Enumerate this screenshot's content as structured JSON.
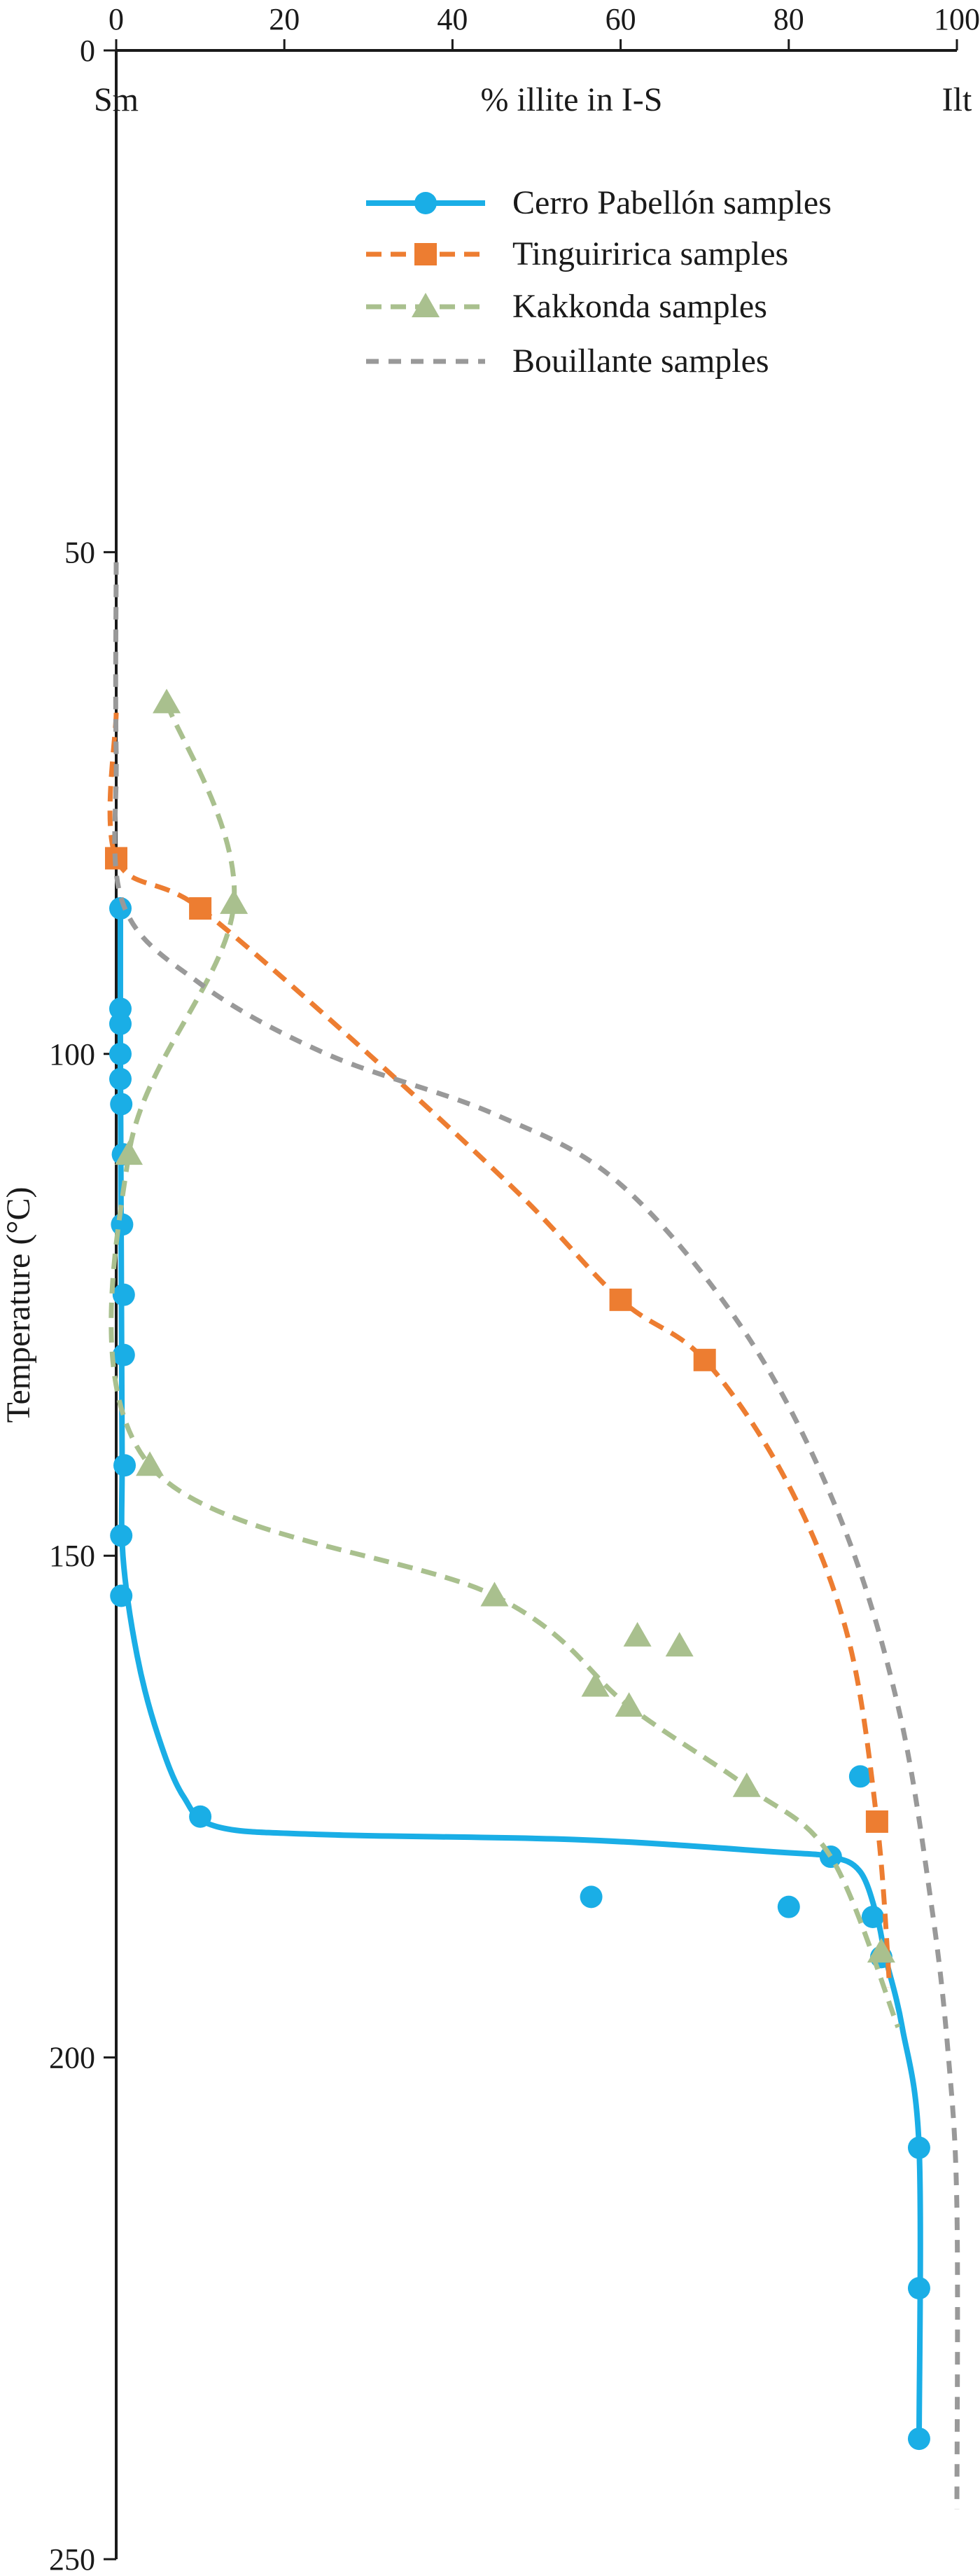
{
  "chart_data": {
    "type": "line",
    "title": "",
    "xlabel": "% illite in I-S",
    "ylabel": "Temperature (°C)",
    "x_end_labels": {
      "left": "Sm",
      "right": "Ilt"
    },
    "xlim": [
      0,
      100
    ],
    "ylim": [
      0,
      250
    ],
    "y_inverted": true,
    "x_ticks": [
      0,
      20,
      40,
      60,
      80,
      100
    ],
    "y_ticks": [
      0,
      50,
      100,
      150,
      200,
      250
    ],
    "grid": false,
    "legend_position": "top-right",
    "series": [
      {
        "name": "Cerro Pabellón samples",
        "color": "#1aaee6",
        "marker": "circle",
        "line_style": "solid",
        "points": [
          [
            0.5,
            85.5
          ],
          [
            0.5,
            95.5
          ],
          [
            0.5,
            97
          ],
          [
            0.5,
            100
          ],
          [
            0.5,
            102.5
          ],
          [
            0.6,
            105
          ],
          [
            0.8,
            110
          ],
          [
            0.7,
            117
          ],
          [
            0.9,
            124
          ],
          [
            0.9,
            130
          ],
          [
            1.0,
            141
          ],
          [
            0.6,
            148
          ],
          [
            0.6,
            154
          ],
          [
            10,
            176
          ],
          [
            88.5,
            172
          ],
          [
            85,
            180
          ],
          [
            56.5,
            184
          ],
          [
            80,
            185
          ],
          [
            90,
            186
          ],
          [
            91,
            190
          ],
          [
            95.5,
            209
          ],
          [
            95.5,
            223
          ],
          [
            95.5,
            238
          ]
        ],
        "curve": [
          [
            0.5,
            85.5
          ],
          [
            0.5,
            100
          ],
          [
            0.6,
            120
          ],
          [
            0.7,
            140
          ],
          [
            0.8,
            150
          ],
          [
            2.5,
            160
          ],
          [
            5,
            168
          ],
          [
            8,
            174
          ],
          [
            12,
            177
          ],
          [
            25,
            177.8
          ],
          [
            55,
            178.3
          ],
          [
            78,
            179.5
          ],
          [
            85,
            180
          ],
          [
            88.5,
            181.5
          ],
          [
            90.5,
            186
          ],
          [
            91.5,
            190
          ],
          [
            93.5,
            197
          ],
          [
            95.5,
            209
          ],
          [
            95.5,
            238
          ]
        ]
      },
      {
        "name": "Tinguiririca samples",
        "color": "#ed7d31",
        "marker": "square",
        "line_style": "dashed",
        "points": [
          [
            0,
            80.5
          ],
          [
            10,
            85.5
          ],
          [
            60,
            124.5
          ],
          [
            70,
            130.5
          ],
          [
            90.5,
            176.5
          ]
        ],
        "curve": [
          [
            0,
            66
          ],
          [
            0,
            80.5
          ],
          [
            10,
            85.5
          ],
          [
            30,
            100
          ],
          [
            48,
            114
          ],
          [
            60,
            124.5
          ],
          [
            70,
            130.5
          ],
          [
            80,
            143
          ],
          [
            87,
            158
          ],
          [
            90.5,
            176.5
          ],
          [
            92,
            193
          ]
        ]
      },
      {
        "name": "Kakkonda samples",
        "color": "#a9c08e",
        "marker": "triangle",
        "line_style": "dashed",
        "points": [
          [
            6,
            65
          ],
          [
            14,
            85
          ],
          [
            1.5,
            110
          ],
          [
            4,
            141
          ],
          [
            45,
            154
          ],
          [
            57,
            163
          ],
          [
            62,
            158
          ],
          [
            67,
            159
          ],
          [
            61,
            165
          ],
          [
            75,
            173
          ],
          [
            91,
            189.5
          ]
        ],
        "curve": [
          [
            6,
            65
          ],
          [
            14,
            85
          ],
          [
            1.5,
            110
          ],
          [
            4,
            141
          ],
          [
            45,
            154
          ],
          [
            61,
            165
          ],
          [
            75,
            173
          ],
          [
            85,
            180
          ],
          [
            93,
            197
          ]
        ]
      },
      {
        "name": "Bouillante samples",
        "color": "#999999",
        "marker": "none",
        "line_style": "dotted",
        "points": [],
        "curve": [
          [
            0,
            51
          ],
          [
            0,
            70
          ],
          [
            0.8,
            85
          ],
          [
            10,
            93
          ],
          [
            25,
            100
          ],
          [
            45,
            106
          ],
          [
            60,
            113
          ],
          [
            75,
            128
          ],
          [
            86,
            146
          ],
          [
            93,
            165
          ],
          [
            97,
            185
          ],
          [
            99,
            200
          ],
          [
            100,
            215
          ],
          [
            100,
            245
          ]
        ]
      }
    ]
  }
}
